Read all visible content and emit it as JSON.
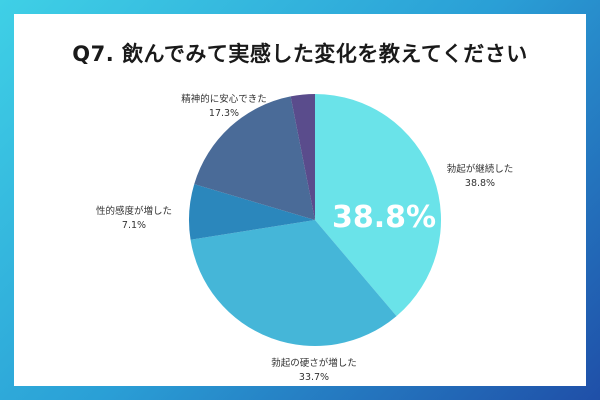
{
  "title": "Q7. 飲んでみて実感した変化を教えてください",
  "chart_data": {
    "type": "pie",
    "title": "Q7. 飲んでみて実感した変化を教えてください",
    "slices": [
      {
        "label": "勃起が継続した",
        "value": 38.8,
        "value_text": "38.8%",
        "color": "#6ae3e9"
      },
      {
        "label": "勃起の硬さが増した",
        "value": 33.7,
        "value_text": "33.7%",
        "color": "#45b6d8"
      },
      {
        "label": "性的感度が増した",
        "value": 7.1,
        "value_text": "7.1%",
        "color": "#2b87bc"
      },
      {
        "label": "精神的に安心できた",
        "value": 17.3,
        "value_text": "17.3%",
        "color": "#4a6b98"
      },
      {
        "label": "",
        "value": 3.1,
        "value_text": "",
        "color": "#5a4c8c"
      }
    ],
    "highlight": "38.8%",
    "start_angle_deg": 0,
    "direction": "clockwise"
  }
}
